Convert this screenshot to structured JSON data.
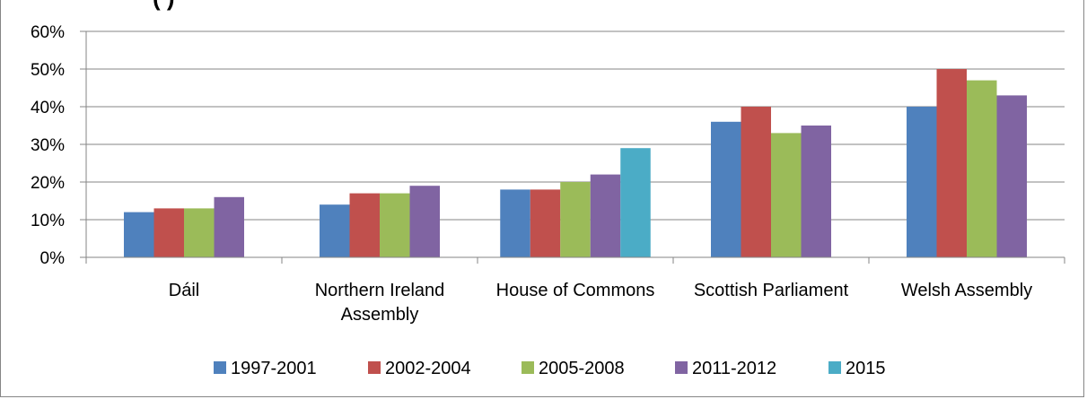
{
  "header": {
    "title_fragment": "(   )"
  },
  "chart_data": {
    "type": "bar",
    "categories": [
      "Dáil",
      "Northern Ireland Assembly",
      "House of Commons",
      "Scottish Parliament",
      "Welsh Assembly"
    ],
    "category_label_lines": [
      [
        "Dáil"
      ],
      [
        "Northern Ireland",
        "Assembly"
      ],
      [
        "House of Commons"
      ],
      [
        "Scottish Parliament"
      ],
      [
        "Welsh Assembly"
      ]
    ],
    "series": [
      {
        "name": "1997-2001",
        "color": "#4F81BD",
        "values": [
          12,
          14,
          18,
          36,
          40
        ]
      },
      {
        "name": "2002-2004",
        "color": "#C0504D",
        "values": [
          13,
          17,
          18,
          40,
          50
        ]
      },
      {
        "name": "2005-2008",
        "color": "#9BBB59",
        "values": [
          13,
          17,
          20,
          33,
          47
        ]
      },
      {
        "name": "2011-2012",
        "color": "#8064A2",
        "values": [
          16,
          19,
          22,
          35,
          43
        ]
      },
      {
        "name": "2015",
        "color": "#4BACC6",
        "values": [
          null,
          null,
          29,
          null,
          null
        ]
      }
    ],
    "yticks": [
      "0%",
      "10%",
      "20%",
      "30%",
      "40%",
      "50%",
      "60%"
    ],
    "ylim": [
      0,
      60
    ],
    "unit": "%",
    "grid": true,
    "legend_position": "bottom"
  }
}
